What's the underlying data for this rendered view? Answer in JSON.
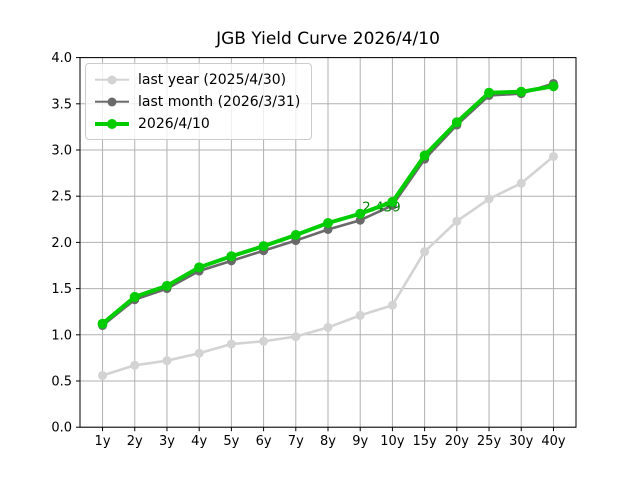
{
  "chart_data": {
    "type": "line",
    "title": "JGB Yield Curve 2026/4/10",
    "xlabel": "",
    "ylabel": "",
    "categories": [
      "1y",
      "2y",
      "3y",
      "4y",
      "5y",
      "6y",
      "7y",
      "8y",
      "9y",
      "10y",
      "15y",
      "20y",
      "25y",
      "30y",
      "40y"
    ],
    "ylim": [
      0.0,
      4.0
    ],
    "y_ticks": [
      "0.0",
      "0.5",
      "1.0",
      "1.5",
      "2.0",
      "2.5",
      "3.0",
      "3.5",
      "4.0"
    ],
    "grid": true,
    "grid_color": "#b0b0b0",
    "axis_color": "#000000",
    "legend_position": "upper left",
    "series": [
      {
        "name": "last year (2025/4/30)",
        "color": "#d3d3d3",
        "line_width": 2.6,
        "marker_radius": 4.5,
        "values": [
          0.56,
          0.67,
          0.72,
          0.8,
          0.9,
          0.93,
          0.98,
          1.08,
          1.21,
          1.32,
          1.9,
          2.23,
          2.47,
          2.64,
          2.93
        ]
      },
      {
        "name": "last month (2026/3/31)",
        "color": "#696969",
        "line_width": 2.6,
        "marker_radius": 4.5,
        "values": [
          1.1,
          1.38,
          1.5,
          1.69,
          1.8,
          1.91,
          2.02,
          2.14,
          2.24,
          2.4,
          2.9,
          3.27,
          3.59,
          3.61,
          3.72
        ]
      },
      {
        "name": "2026/4/10",
        "color": "#00cc00",
        "line_width": 4,
        "marker_radius": 5,
        "values": [
          1.12,
          1.41,
          1.53,
          1.73,
          1.85,
          1.96,
          2.08,
          2.21,
          2.31,
          2.439,
          2.94,
          3.3,
          3.62,
          3.63,
          3.69
        ]
      }
    ],
    "annotation": {
      "text": "2.439",
      "series_index": 2,
      "category": "10y",
      "color": "#008000"
    }
  }
}
